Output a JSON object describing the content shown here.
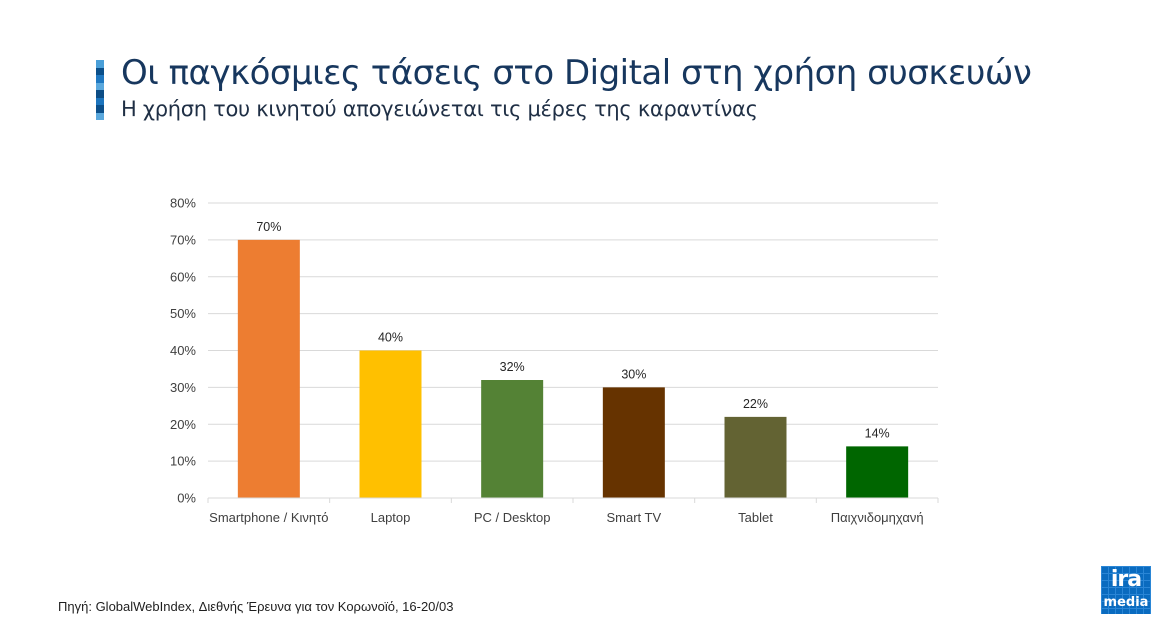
{
  "header": {
    "title": "Οι παγκόσμιες τάσεις στο Digital στη χρήση συσκευών",
    "subtitle": "Η χρήση του κινητού απογειώνεται τις μέρες της καραντίνας",
    "accent_colors": [
      "#4a9fd8",
      "#0b4f8a",
      "#1f78c1",
      "#5aa8dd",
      "#0d4d86",
      "#1c74bd",
      "#0b4f8a",
      "#5aa8dd"
    ]
  },
  "chart_data": {
    "type": "bar",
    "title": "",
    "xlabel": "",
    "ylabel": "",
    "categories": [
      "Smartphone / Κινητό",
      "Laptop",
      "PC / Desktop",
      "Smart TV",
      "Tablet",
      "Παιχνιδομηχανή"
    ],
    "values": [
      70,
      40,
      32,
      30,
      22,
      14
    ],
    "data_labels": [
      "70%",
      "40%",
      "32%",
      "30%",
      "22%",
      "14%"
    ],
    "colors": [
      "#ed7d31",
      "#ffc000",
      "#548235",
      "#663300",
      "#636333",
      "#006600"
    ],
    "ylim": [
      0,
      80
    ],
    "yticks": [
      0,
      10,
      20,
      30,
      40,
      50,
      60,
      70,
      80
    ],
    "ytick_labels": [
      "0%",
      "10%",
      "20%",
      "30%",
      "40%",
      "50%",
      "60%",
      "70%",
      "80%"
    ],
    "grid": true,
    "legend": "none"
  },
  "footer": {
    "source": "Πηγή:  GlobalWebIndex, Διεθνής Έρευνα για τον Κορωνοϊό, 16-20/03"
  },
  "logo": {
    "line1": "ira",
    "line2": "media",
    "color": "#0a6bbf"
  }
}
